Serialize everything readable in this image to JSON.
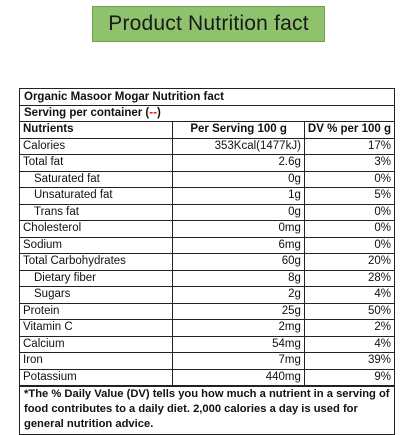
{
  "header": {
    "title": "Product Nutrition fact"
  },
  "panel": {
    "title": "Organic Masoor Mogar Nutrition fact",
    "serving_label": "Serving per container (",
    "serving_value": "--",
    "serving_close": ")",
    "columns": [
      "Nutrients",
      "Per Serving 100 g",
      "DV % per 100 g"
    ],
    "rows": [
      {
        "name": "Calories",
        "amount": "353Kcal(1477kJ)",
        "dv": "17%"
      },
      {
        "name": "Total fat",
        "amount": "2.6g",
        "dv": "3%"
      },
      {
        "name": "Saturated fat",
        "amount": "0g",
        "dv": "0%"
      },
      {
        "name": "Unsaturated fat",
        "amount": "1g",
        "dv": "5%"
      },
      {
        "name": "Trans fat",
        "amount": "0g",
        "dv": "0%"
      },
      {
        "name": "Cholesterol",
        "amount": "0mg",
        "dv": "0%"
      },
      {
        "name": "Sodium",
        "amount": "6mg",
        "dv": "0%"
      },
      {
        "name": "Total Carbohydrates",
        "amount": "60g",
        "dv": "20%"
      },
      {
        "name": "Dietary fiber",
        "amount": "8g",
        "dv": "28%"
      },
      {
        "name": "Sugars",
        "amount": "2g",
        "dv": "4%"
      },
      {
        "name": "Protein",
        "amount": "25g",
        "dv": "50%"
      },
      {
        "name": "Vitamin C",
        "amount": "2mg",
        "dv": "2%"
      },
      {
        "name": "Calcium",
        "amount": "54mg",
        "dv": "4%"
      },
      {
        "name": "Iron",
        "amount": "7mg",
        "dv": "39%"
      },
      {
        "name": "Potassium",
        "amount": "440mg",
        "dv": "9%"
      }
    ],
    "footnote": "*The % Daily Value (DV) tells you how much a nutrient in a serving of food contributes to a daily diet. 2,000 calories a day is used for general nutrition advice."
  }
}
